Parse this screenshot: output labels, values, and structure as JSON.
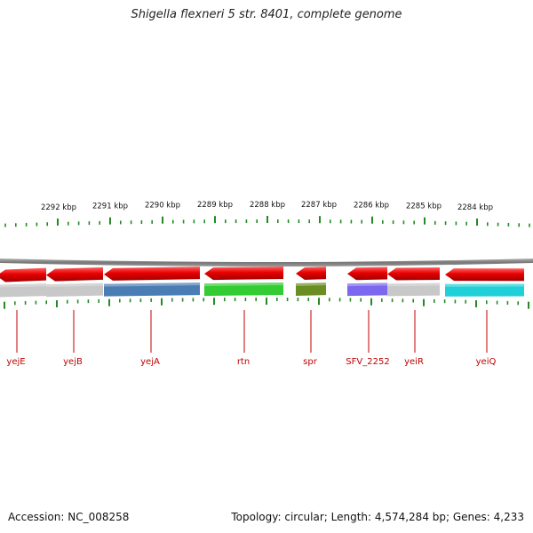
{
  "title": "Shigella flexneri 5 str. 8401, complete genome",
  "footer": {
    "accession": "Accession: NC_008258",
    "summary": "Topology: circular; Length: 4,574,284 bp; Genes: 4,233"
  },
  "scale_labels": [
    "2292 kbp",
    "2291 kbp",
    "2290 kbp",
    "2289 kbp",
    "2288 kbp",
    "2287 kbp",
    "2286 kbp",
    "2285 kbp",
    "2284 kbp"
  ],
  "genes": [
    {
      "name": "yejE",
      "cds_color": "#c8c8c8",
      "strand": "reverse"
    },
    {
      "name": "yejB",
      "cds_color": "#c8c8c8",
      "strand": "reverse"
    },
    {
      "name": "yejA",
      "cds_color": "#4b7db5",
      "strand": "reverse"
    },
    {
      "name": "rtn",
      "cds_color": "#33cc33",
      "strand": "reverse"
    },
    {
      "name": "spr",
      "cds_color": "#6b8e23",
      "strand": "reverse"
    },
    {
      "name": "SFV_2252",
      "cds_color": "#7b68ee",
      "strand": "reverse"
    },
    {
      "name": "yeiR",
      "cds_color": "#c8c8c8",
      "strand": "reverse"
    },
    {
      "name": "yeiQ",
      "cds_color": "#20d0d8",
      "strand": "reverse"
    }
  ],
  "colors": {
    "gene_arrow": "#e80000",
    "backbone": "#888888",
    "tick": "#228b22",
    "label": "#c00000"
  }
}
